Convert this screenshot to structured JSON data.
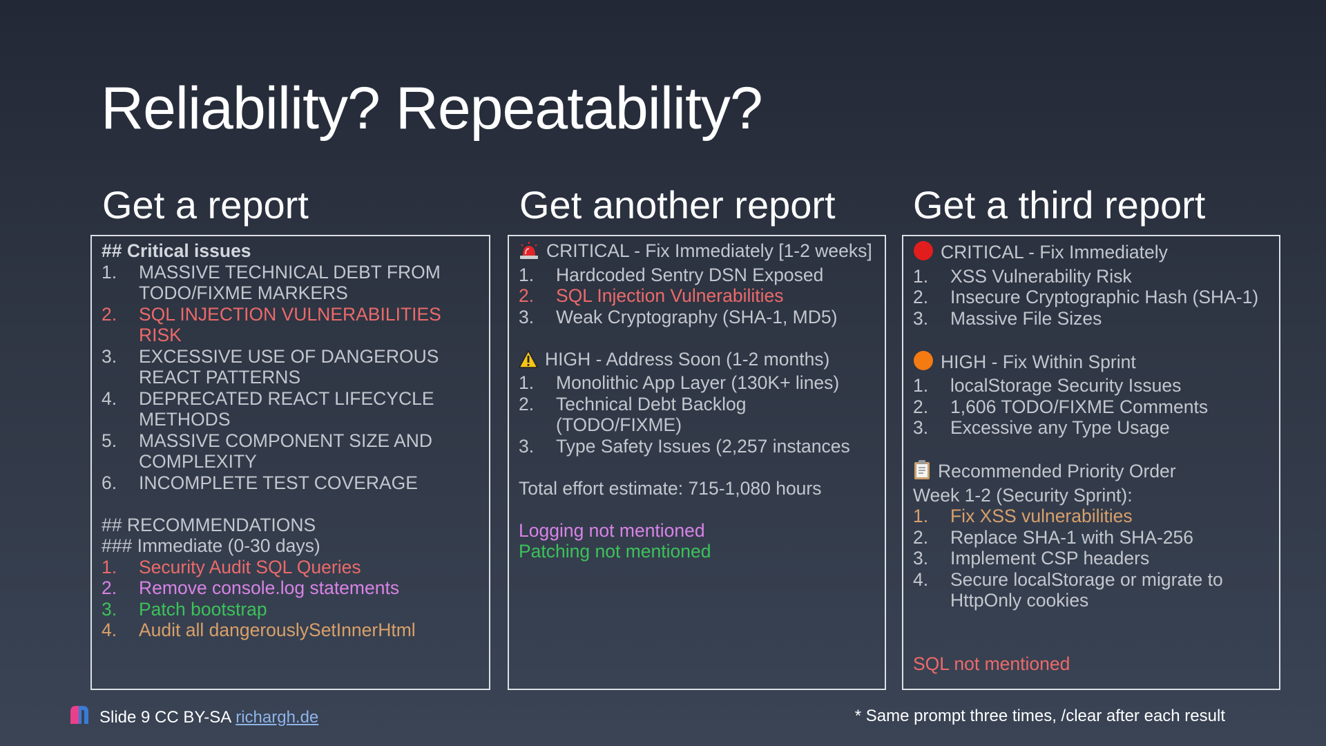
{
  "title": "Reliability? Repeatability?",
  "columns": [
    {
      "heading": "Get a report",
      "critical_header": "## Critical issues",
      "critical_items": [
        {
          "num": "1.",
          "text": "MASSIVE TECHNICAL DEBT FROM TODO/FIXME MARKERS"
        },
        {
          "num": "2.",
          "text": "SQL INJECTION VULNERABILITIES RISK"
        },
        {
          "num": "3.",
          "text": "EXCESSIVE USE OF DANGEROUS REACT PATTERNS"
        },
        {
          "num": "4.",
          "text": "DEPRECATED REACT LIFECYCLE METHODS"
        },
        {
          "num": "5.",
          "text": "MASSIVE COMPONENT SIZE AND COMPLEXITY"
        },
        {
          "num": "6.",
          "text": "INCOMPLETE TEST COVERAGE"
        }
      ],
      "rec_header": "## RECOMMENDATIONS",
      "rec_sub": "### Immediate (0-30 days)",
      "rec_items": [
        {
          "num": "1.",
          "text": "Security Audit SQL Queries"
        },
        {
          "num": "2.",
          "text": "Remove console.log statements"
        },
        {
          "num": "3.",
          "text": "Patch bootstrap"
        },
        {
          "num": "4.",
          "text": "Audit all dangerouslySetInnerHtml"
        }
      ]
    },
    {
      "heading": "Get another report",
      "critical_header": "CRITICAL - Fix Immediately [1-2 weeks]",
      "critical_items": [
        {
          "num": "1.",
          "text": "Hardcoded Sentry DSN Exposed"
        },
        {
          "num": "2.",
          "text": "SQL Injection Vulnerabilities"
        },
        {
          "num": "3.",
          "text": "Weak Cryptography (SHA-1, MD5)"
        }
      ],
      "high_header": "HIGH - Address Soon (1-2 months)",
      "high_items": [
        {
          "num": "1.",
          "text": "Monolithic App Layer (130K+ lines)"
        },
        {
          "num": "2.",
          "text": "Technical Debt Backlog (TODO/FIXME)"
        },
        {
          "num": "3.",
          "text": "Type Safety Issues (2,257 instances"
        }
      ],
      "effort": "Total effort estimate: 715-1,080 hours",
      "note_logging": "Logging not mentioned",
      "note_patching": "Patching not mentioned"
    },
    {
      "heading": "Get a third report",
      "critical_header": "CRITICAL - Fix Immediately",
      "critical_items": [
        {
          "num": "1.",
          "text": "XSS Vulnerability Risk"
        },
        {
          "num": "2.",
          "text": "Insecure Cryptographic Hash (SHA-1)"
        },
        {
          "num": "3.",
          "text": "Massive File Sizes"
        }
      ],
      "high_header": "HIGH - Fix Within Sprint",
      "high_items": [
        {
          "num": "1.",
          "text": "localStorage Security Issues"
        },
        {
          "num": "2.",
          "text": "1,606 TODO/FIXME Comments"
        },
        {
          "num": "3.",
          "text": "Excessive any Type Usage"
        }
      ],
      "priority_header": "Recommended Priority Order",
      "priority_sub": "Week 1-2 (Security Sprint):",
      "priority_items": [
        {
          "num": "1.",
          "text": "Fix XSS vulnerabilities"
        },
        {
          "num": "2.",
          "text": "Replace SHA-1 with SHA-256"
        },
        {
          "num": "3.",
          "text": "Implement CSP headers"
        },
        {
          "num": "4.",
          "text": "Secure localStorage or migrate to HttpOnly cookies"
        }
      ],
      "note_sql": "SQL not mentioned"
    }
  ],
  "footer": {
    "slide_text": "Slide 9 CC BY-SA",
    "link_text": "richargh.de",
    "note": "* Same prompt three times, /clear after each result"
  },
  "icons": {
    "siren": "police-light-icon",
    "warning": "warning-icon",
    "red_circle": "red-circle-icon",
    "orange_circle": "orange-circle-icon",
    "clipboard": "clipboard-icon",
    "logo": "logo-icon"
  },
  "colors": {
    "red": "#ec6a6a",
    "purple": "#d883e6",
    "green": "#3cc25a",
    "orange": "#d9a06a",
    "link": "#8fb4e8"
  }
}
